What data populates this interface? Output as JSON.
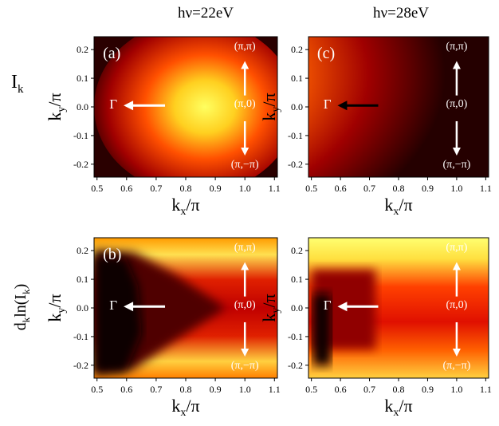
{
  "columns": [
    {
      "title": "hν=22eV"
    },
    {
      "title": "hν=28eV"
    }
  ],
  "rows": [
    {
      "label": [
        "I",
        "k"
      ]
    },
    {
      "label": [
        "d",
        "k",
        "ln(I",
        "k",
        ")"
      ]
    }
  ],
  "x_axis": {
    "label": [
      "k",
      "x",
      "/π"
    ],
    "ticks": [
      {
        "value": 0.5,
        "label": "0.5"
      },
      {
        "value": 0.6,
        "label": "0.6"
      },
      {
        "value": 0.7,
        "label": "0.7"
      },
      {
        "value": 0.8,
        "label": "0.8"
      },
      {
        "value": 0.9,
        "label": "0.9"
      },
      {
        "value": 1.0,
        "label": "1.0"
      },
      {
        "value": 1.1,
        "label": "1.1"
      }
    ],
    "lim": [
      0.49,
      1.11
    ]
  },
  "y_axis": {
    "label": [
      "k",
      "y",
      "/π"
    ],
    "ticks": [
      {
        "value": -0.2,
        "label": "-0.2"
      },
      {
        "value": -0.1,
        "label": "-0.1"
      },
      {
        "value": 0,
        "label": "0.0"
      },
      {
        "value": 0.1,
        "label": "0.1"
      },
      {
        "value": 0.2,
        "label": "0.2"
      }
    ],
    "lim": [
      -0.245,
      0.245
    ]
  },
  "annotations": {
    "gamma": "Γ",
    "pi_pi": "(π,π)",
    "pi_0": "(π,0)",
    "pi_mpi": "(π,−π)"
  },
  "panels": [
    {
      "label": "(a)"
    },
    {
      "label": "(c)"
    },
    {
      "label": "(b)"
    },
    {}
  ]
}
